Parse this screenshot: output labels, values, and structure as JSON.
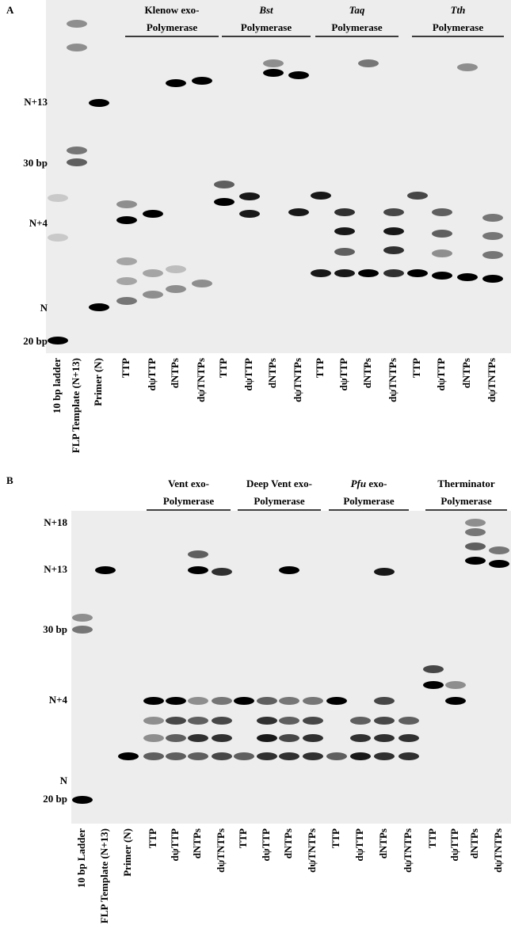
{
  "panels": [
    {
      "label": "A",
      "groups": [
        {
          "title": "Klenow exo-",
          "subtitle": "Polymerase",
          "italic": false
        },
        {
          "title": "Bst",
          "subtitle": "Polymerase",
          "italic": true
        },
        {
          "title": "Taq",
          "subtitle": "Polymerase",
          "italic": true
        },
        {
          "title": "Tth",
          "subtitle": "Polymerase",
          "italic": true
        }
      ],
      "side_labels": [
        "N+13",
        "30 bp",
        "N+4",
        "N",
        "20 bp"
      ],
      "lanes": [
        "10 bp ladder",
        "FLP Template (N+13)",
        "Primer (N)",
        "TTP",
        "dψTTP",
        "dNTPs",
        "dψTNTPs",
        "TTP",
        "dψTTP",
        "dNTPs",
        "dψTNTPs",
        "TTP",
        "dψTTP",
        "dNTPs",
        "dψTNTPs",
        "TTP",
        "dψTTP",
        "dNTPs",
        "dψTNTPs"
      ]
    },
    {
      "label": "B",
      "groups": [
        {
          "title": "Vent exo-",
          "subtitle": "Polymerase",
          "italic": false
        },
        {
          "title": "Deep Vent exo-",
          "subtitle": "Polymerase",
          "italic": false
        },
        {
          "title": "Pfu",
          "title_suffix": " exo-",
          "subtitle": "Polymerase",
          "italic": true
        },
        {
          "title": "Therminator",
          "subtitle": "Polymerase",
          "italic": false
        }
      ],
      "side_labels": [
        "N+18",
        "N+13",
        "30 bp",
        "N+4",
        "N",
        "20 bp"
      ],
      "lanes": [
        "10 bp Ladder",
        "FLP Template (N+13)",
        "Primer (N)",
        "TTP",
        "dψTTP",
        "dNTPs",
        "dψTNTPs",
        "TTP",
        "dψTTP",
        "dNTPs",
        "dψTNTPs",
        "TTP",
        "dψTTP",
        "dNTPs",
        "dψTNTPs",
        "TTP",
        "dψTTP",
        "dNTPs",
        "dψTNTPs"
      ]
    }
  ]
}
